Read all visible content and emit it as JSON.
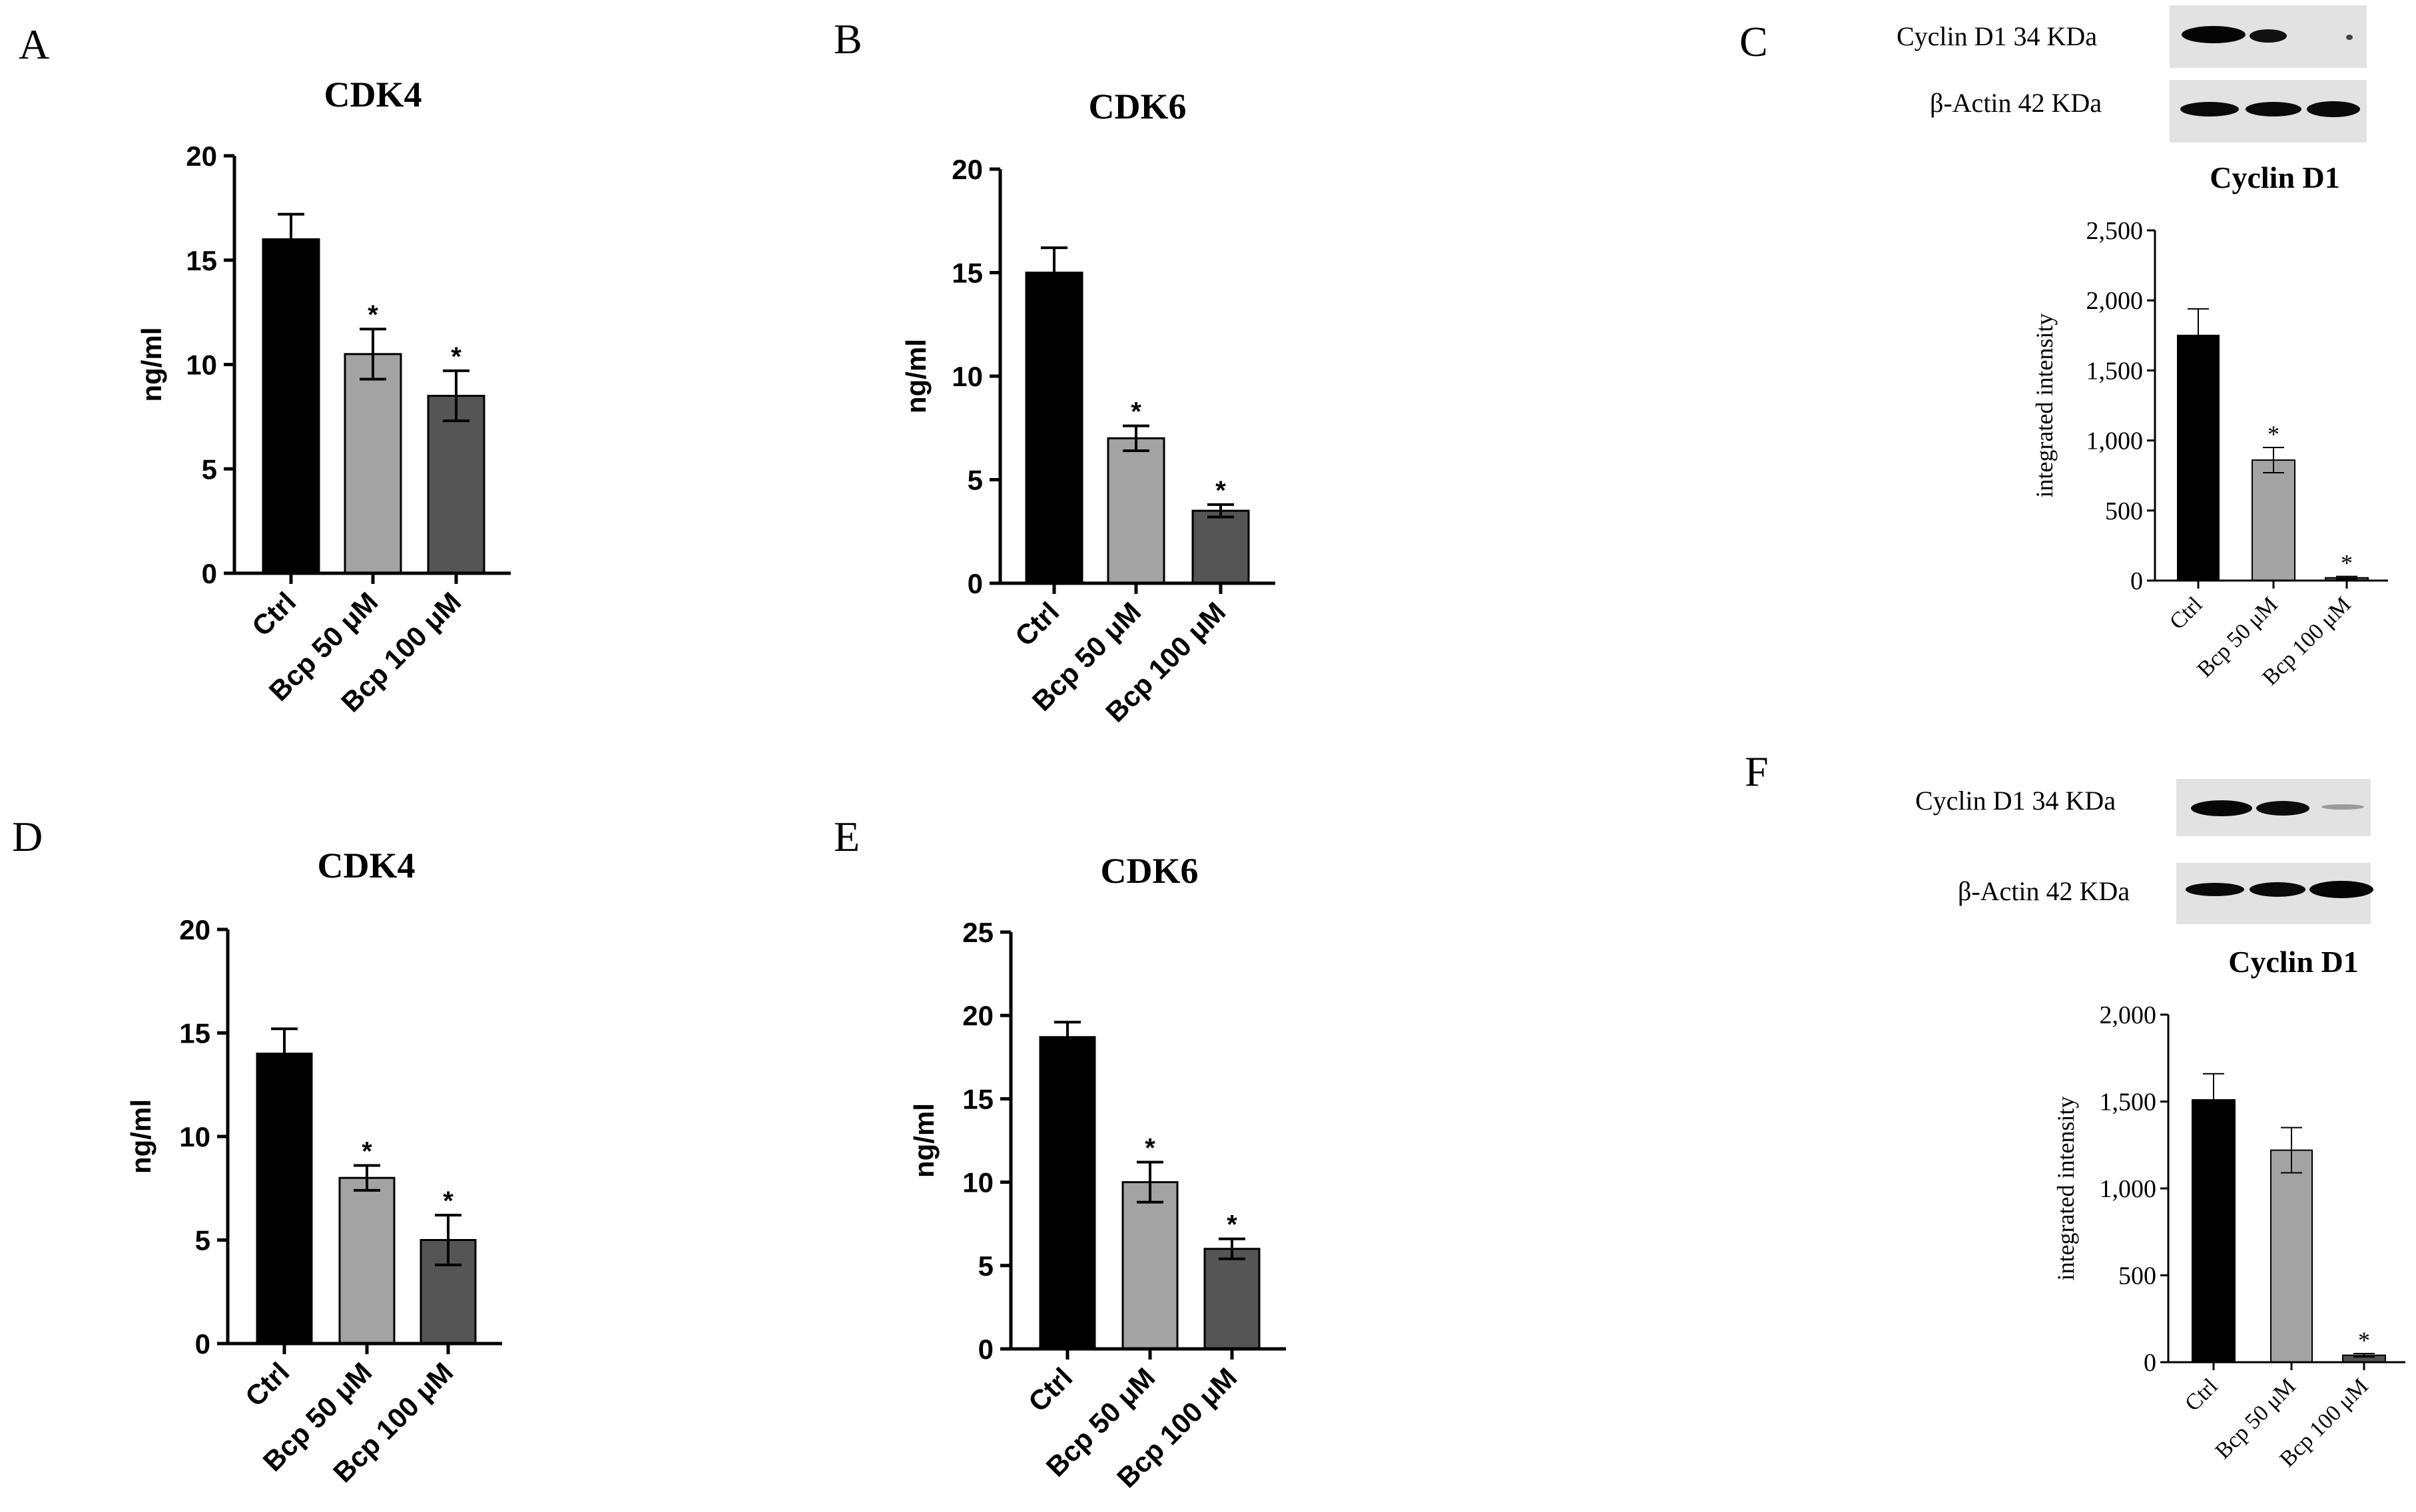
{
  "chart_data": [
    {
      "panel": "A",
      "type": "bar",
      "title": "CDK4",
      "xlabel": "",
      "ylabel": "ng/ml",
      "categories": [
        "Ctrl",
        "Bcp 50 μM",
        "Bcp 100 μM"
      ],
      "values": [
        16,
        10.5,
        8.5
      ],
      "errors": [
        1.2,
        1.2,
        1.2
      ],
      "significance": [
        "",
        "*",
        "*"
      ],
      "ylim": [
        0,
        20
      ],
      "yticks": [
        "0",
        "5",
        "10",
        "15",
        "20"
      ],
      "colors": [
        "#000000",
        "#a3a3a3",
        "#555555"
      ]
    },
    {
      "panel": "B",
      "type": "bar",
      "title": "CDK6",
      "xlabel": "",
      "ylabel": "ng/ml",
      "categories": [
        "Ctrl",
        "Bcp 50 μM",
        "Bcp 100 μM"
      ],
      "values": [
        15,
        7,
        3.5
      ],
      "errors": [
        1.2,
        0.6,
        0.3
      ],
      "significance": [
        "",
        "*",
        "*"
      ],
      "ylim": [
        0,
        20
      ],
      "yticks": [
        "0",
        "5",
        "10",
        "15",
        "20"
      ],
      "colors": [
        "#000000",
        "#a3a3a3",
        "#555555"
      ]
    },
    {
      "panel": "C",
      "type": "bar",
      "title": "Cyclin D1",
      "xlabel": "",
      "ylabel": "integrated intensity",
      "categories": [
        "Ctrl",
        "Bcp 50 μM",
        "Bcp 100 μM"
      ],
      "values": [
        1750,
        860,
        20
      ],
      "errors": [
        190,
        90,
        10
      ],
      "significance": [
        "",
        "*",
        "*"
      ],
      "ylim": [
        0,
        2500
      ],
      "yticks": [
        "0",
        "500",
        "1,000",
        "1,500",
        "2,000",
        "2,500"
      ],
      "colors": [
        "#000000",
        "#a3a3a3",
        "#555555"
      ],
      "blot": {
        "rows": [
          "Cyclin D1 34 KDa",
          "β-Actin 42 KDa"
        ]
      }
    },
    {
      "panel": "D",
      "type": "bar",
      "title": "CDK4",
      "xlabel": "",
      "ylabel": "ng/ml",
      "categories": [
        "Ctrl",
        "Bcp 50 μM",
        "Bcp 100 μM"
      ],
      "values": [
        14,
        8,
        5
      ],
      "errors": [
        1.2,
        0.6,
        1.2
      ],
      "significance": [
        "",
        "*",
        "*"
      ],
      "ylim": [
        0,
        20
      ],
      "yticks": [
        "0",
        "5",
        "10",
        "15",
        "20"
      ],
      "colors": [
        "#000000",
        "#a3a3a3",
        "#555555"
      ]
    },
    {
      "panel": "E",
      "type": "bar",
      "title": "CDK6",
      "xlabel": "",
      "ylabel": "ng/ml",
      "categories": [
        "Ctrl",
        "Bcp 50 μM",
        "Bcp 100 μM"
      ],
      "values": [
        18.7,
        10,
        6
      ],
      "errors": [
        0.9,
        1.2,
        0.6
      ],
      "significance": [
        "",
        "*",
        "*"
      ],
      "ylim": [
        0,
        25
      ],
      "yticks": [
        "0",
        "5",
        "10",
        "15",
        "20",
        "25"
      ],
      "colors": [
        "#000000",
        "#a3a3a3",
        "#555555"
      ]
    },
    {
      "panel": "F",
      "type": "bar",
      "title": "Cyclin D1",
      "xlabel": "",
      "ylabel": "integrated intensity",
      "categories": [
        "Ctrl",
        "Bcp 50 μM",
        "Bcp 100 μM"
      ],
      "values": [
        1510,
        1220,
        40
      ],
      "errors": [
        150,
        130,
        10
      ],
      "significance": [
        "",
        "",
        "*"
      ],
      "ylim": [
        0,
        2000
      ],
      "yticks": [
        "0",
        "500",
        "1,000",
        "1,500",
        "2,000"
      ],
      "colors": [
        "#000000",
        "#a3a3a3",
        "#555555"
      ],
      "blot": {
        "rows": [
          "Cyclin D1 34 KDa",
          "β-Actin 42 KDa"
        ]
      }
    }
  ]
}
